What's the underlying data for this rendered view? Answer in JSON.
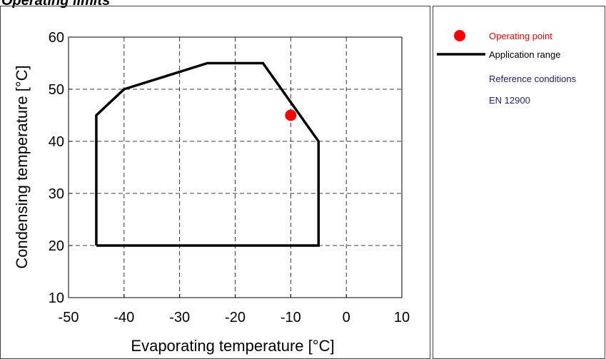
{
  "title": "Operating limits",
  "chart_data": {
    "type": "line",
    "xlabel": "Evaporating temperature [°C]",
    "ylabel": "Condensing temperature [°C]",
    "xlim": [
      -50,
      10
    ],
    "ylim": [
      10,
      60
    ],
    "xticks": [
      -50,
      -40,
      -30,
      -20,
      -10,
      0,
      10
    ],
    "yticks": [
      10,
      20,
      30,
      40,
      50,
      60
    ],
    "grid": true,
    "legend_position": "right panel",
    "series": [
      {
        "name": "Application range",
        "type": "line",
        "color": "#000000",
        "points": [
          [
            -45,
            20
          ],
          [
            -5,
            20
          ],
          [
            -5,
            40
          ],
          [
            -15,
            55
          ],
          [
            -25,
            55
          ],
          [
            -40,
            50
          ],
          [
            -45,
            45
          ],
          [
            -45,
            20
          ]
        ]
      },
      {
        "name": "Operating point",
        "type": "scatter",
        "color": "#ff0000",
        "points": [
          [
            -10,
            45
          ]
        ]
      }
    ]
  },
  "legend": {
    "operating_point": "Operating point",
    "application_range": "Application range",
    "reference_conditions": "Reference conditions",
    "standard": "EN 12900"
  },
  "colors": {
    "operating_point": "#ff0000",
    "application_range": "#000000",
    "reference_text": "#1f1f7a"
  }
}
